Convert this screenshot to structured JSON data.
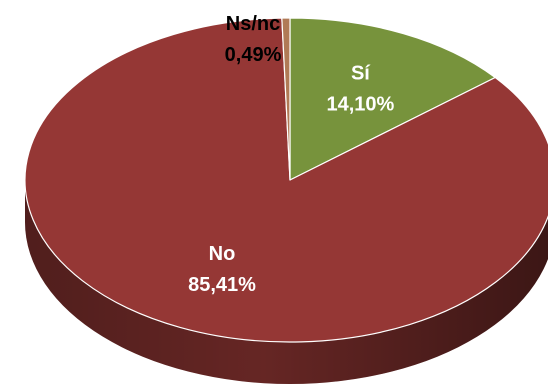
{
  "chart_data": {
    "type": "pie",
    "style": "3d",
    "title": "",
    "slices": [
      {
        "name": "Sí",
        "value": 14.1,
        "value_label": "14,10%",
        "color": "#77933C",
        "label_color": "#ffffff"
      },
      {
        "name": "No",
        "value": 85.41,
        "value_label": "85,41%",
        "color": "#953735",
        "label_color": "#ffffff"
      },
      {
        "name": "Ns/nc",
        "value": 0.49,
        "value_label": "0,49%",
        "color": "#B07A56",
        "label_color": "#000000"
      }
    ],
    "legend": "none",
    "labels_position": [
      "inside",
      "inside",
      "outside-top"
    ]
  }
}
